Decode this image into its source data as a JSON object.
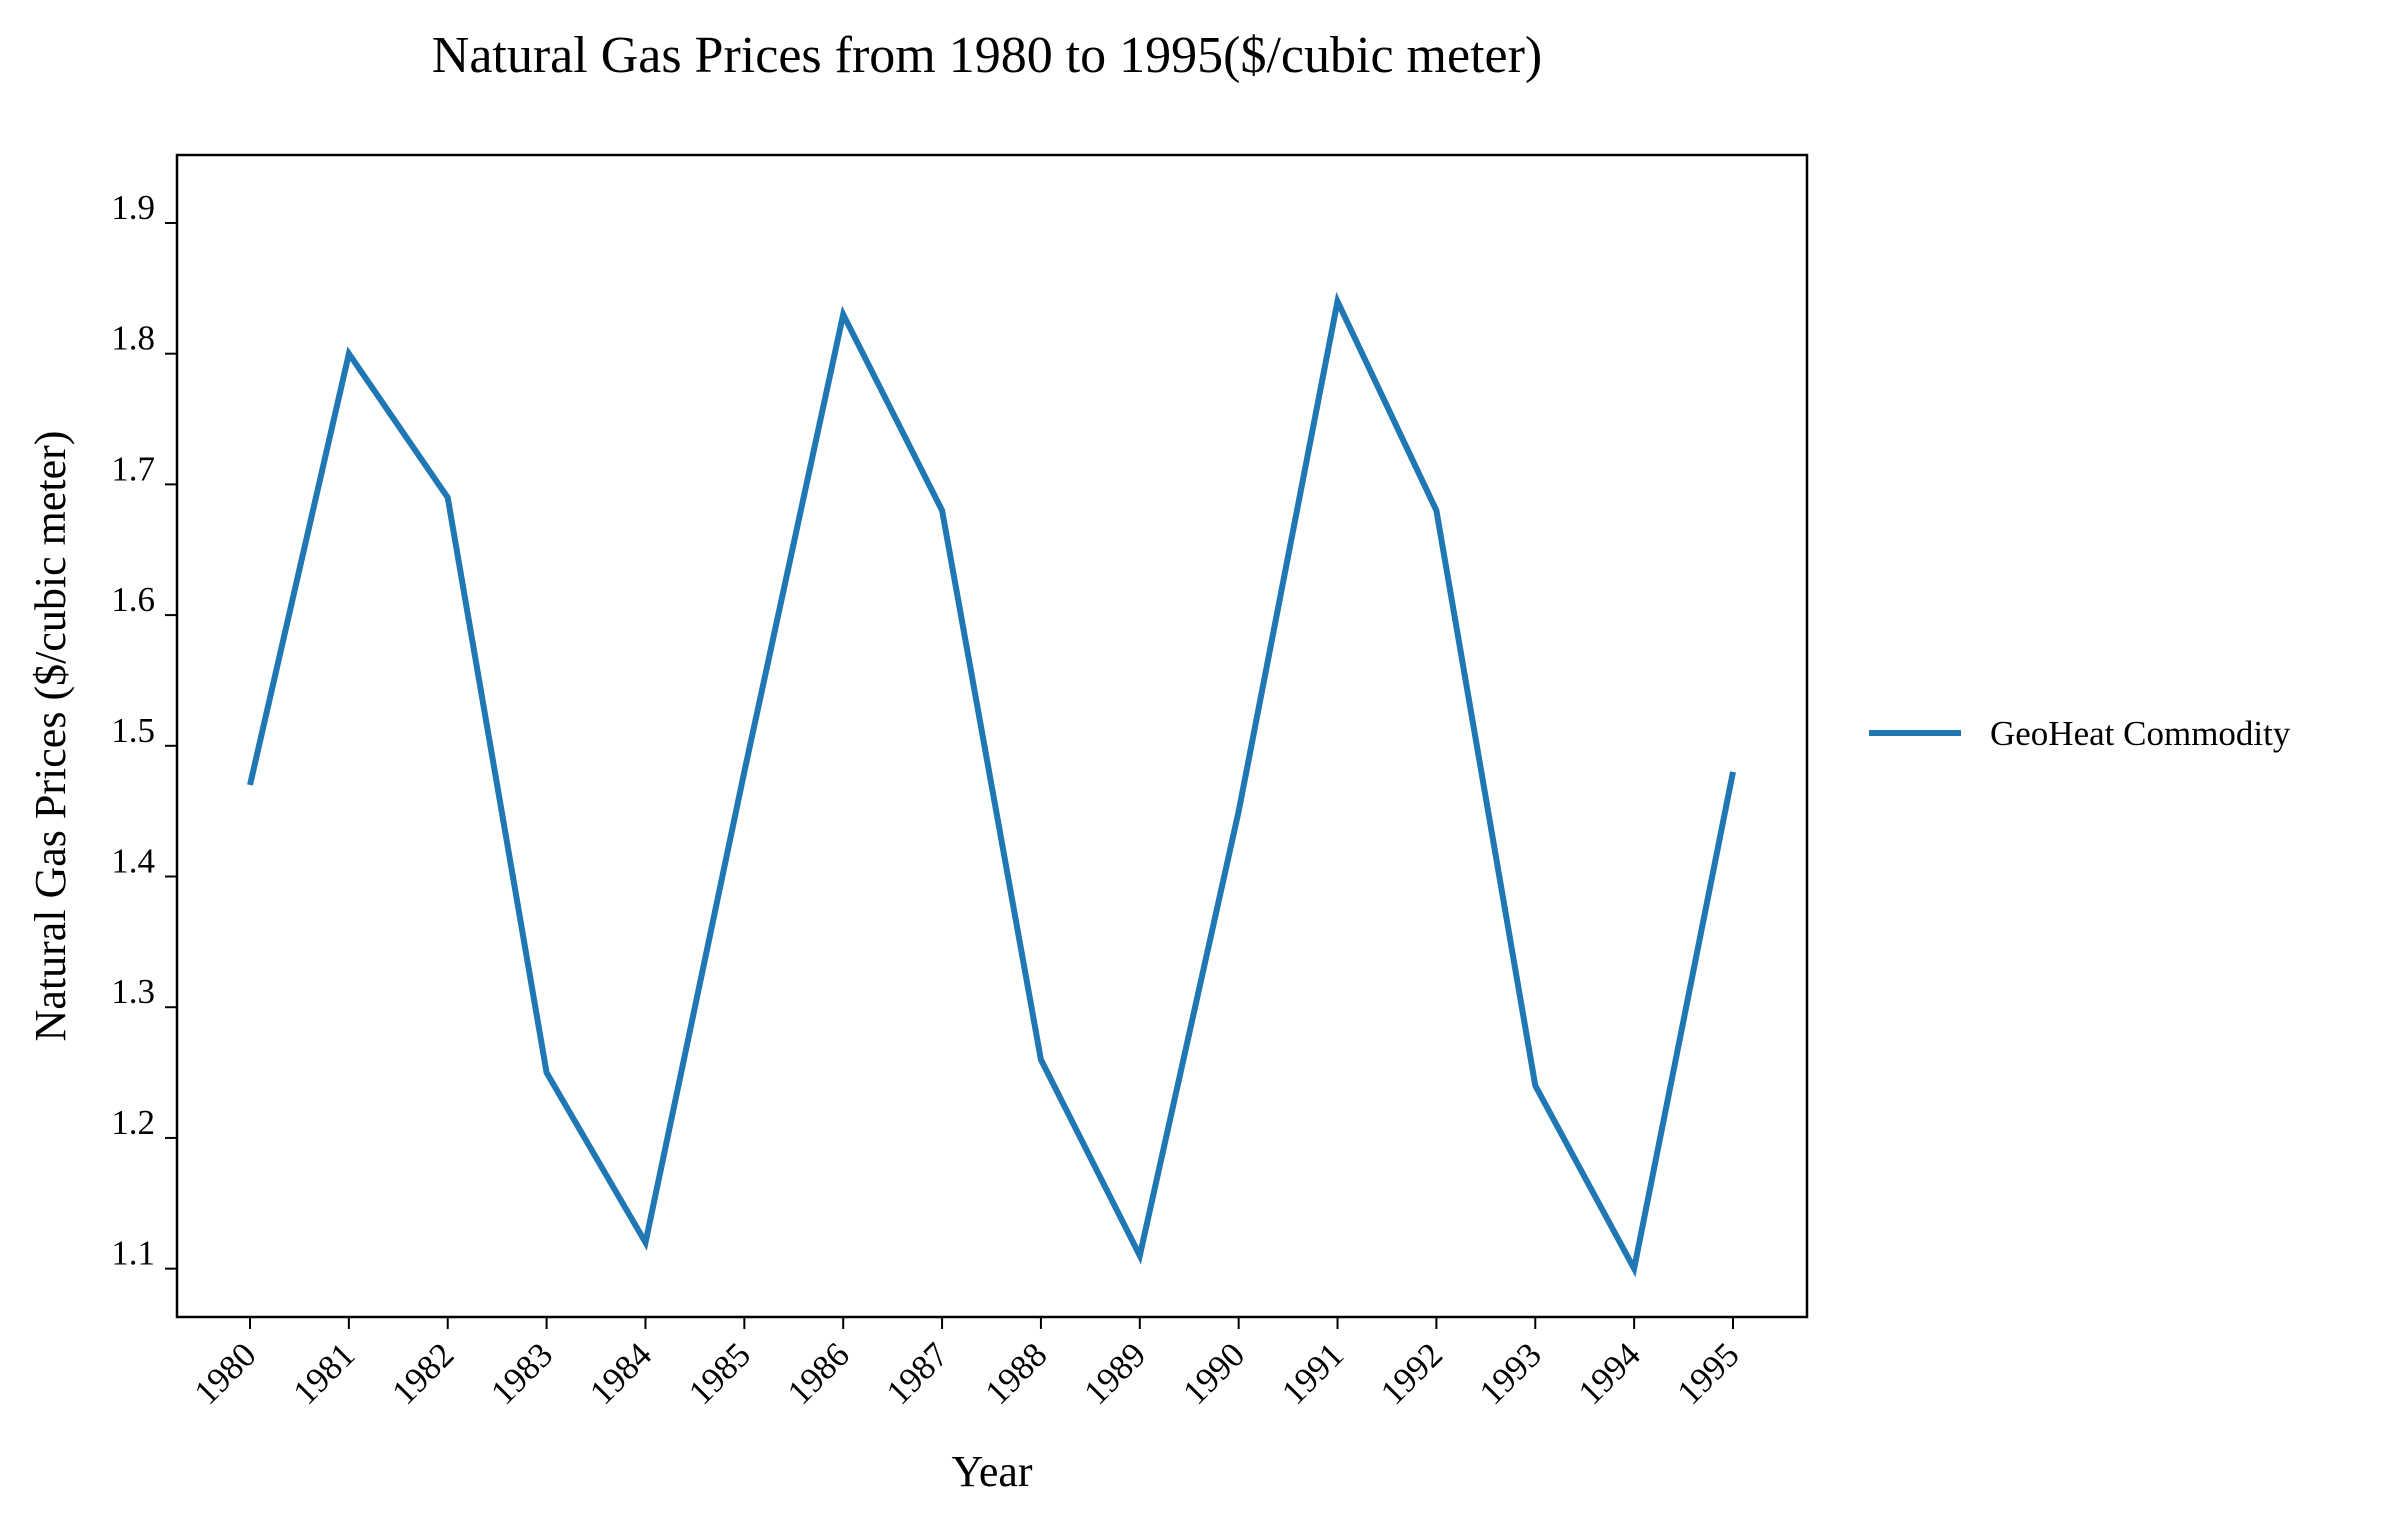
{
  "chart_data": {
    "type": "line",
    "title": "Natural Gas Prices from 1980 to 1995($/cubic meter)",
    "xlabel": "Year",
    "ylabel": "Natural Gas Prices ($/cubic meter)",
    "x": [
      "1980",
      "1981",
      "1982",
      "1983",
      "1984",
      "1985",
      "1986",
      "1987",
      "1988",
      "1989",
      "1990",
      "1991",
      "1992",
      "1993",
      "1994",
      "1995"
    ],
    "series": [
      {
        "name": "GeoHeat Commodity",
        "color": "#1f77b4",
        "values": [
          1.47,
          1.8,
          1.69,
          1.25,
          1.12,
          1.48,
          1.83,
          1.68,
          1.26,
          1.11,
          1.45,
          1.84,
          1.68,
          1.24,
          1.1,
          1.48
        ]
      }
    ],
    "yticks": [
      "1.1",
      "1.2",
      "1.3",
      "1.4",
      "1.5",
      "1.6",
      "1.7",
      "1.8",
      "1.9"
    ],
    "ylim": [
      1.063,
      1.952
    ],
    "grid": false,
    "legend_position": "right"
  }
}
